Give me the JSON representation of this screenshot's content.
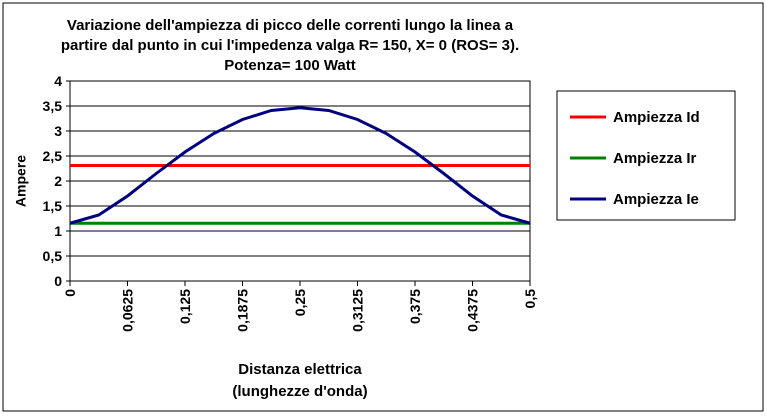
{
  "chart_data": {
    "type": "line",
    "title": [
      "Variazione dell'ampiezza di picco delle correnti lungo la linea a",
      "partire dal punto in cui l'impedenza valga R= 150, X= 0 (ROS= 3).",
      "Potenza= 100 Watt"
    ],
    "x_label": [
      "Distanza elettrica",
      "(lunghezze d'onda)"
    ],
    "y_label": "Ampere",
    "x": [
      0,
      0.03125,
      0.0625,
      0.09375,
      0.125,
      0.15625,
      0.1875,
      0.21875,
      0.25,
      0.28125,
      0.3125,
      0.34375,
      0.375,
      0.40625,
      0.4375,
      0.46875,
      0.5
    ],
    "series": [
      {
        "name": "Ampiezza Id",
        "color": "#ff0000",
        "values": [
          2.31,
          2.31,
          2.31,
          2.31,
          2.31,
          2.31,
          2.31,
          2.31,
          2.31,
          2.31,
          2.31,
          2.31,
          2.31,
          2.31,
          2.31,
          2.31,
          2.31
        ]
      },
      {
        "name": "Ampiezza Ir",
        "color": "#008000",
        "values": [
          1.155,
          1.155,
          1.155,
          1.155,
          1.155,
          1.155,
          1.155,
          1.155,
          1.155,
          1.155,
          1.155,
          1.155,
          1.155,
          1.155,
          1.155,
          1.155,
          1.155
        ]
      },
      {
        "name": "Ampiezza Ie",
        "color": "#000080",
        "values": [
          1.155,
          1.32,
          1.7,
          2.15,
          2.58,
          2.95,
          3.23,
          3.41,
          3.465,
          3.41,
          3.23,
          2.95,
          2.58,
          2.15,
          1.7,
          1.32,
          1.155
        ]
      }
    ],
    "xlim": [
      0,
      0.5
    ],
    "xticks": [
      0,
      {
        "value": 0.0625,
        "label": "0,0625"
      },
      {
        "value": 0.125,
        "label": "0,125"
      },
      {
        "value": 0.1875,
        "label": "0,1875"
      },
      {
        "value": 0.25,
        "label": "0,25"
      },
      {
        "value": 0.3125,
        "label": "0,3125"
      },
      {
        "value": 0.375,
        "label": "0,375"
      },
      {
        "value": 0.4375,
        "label": "0,4375"
      },
      {
        "value": 0.5,
        "label": "0,5"
      }
    ],
    "ylim": [
      0,
      4
    ],
    "yticks": [
      0,
      {
        "value": 0.5,
        "label": "0,5"
      },
      1,
      {
        "value": 1.5,
        "label": "1,5"
      },
      2,
      {
        "value": 2.5,
        "label": "2,5"
      },
      3,
      {
        "value": 3.5,
        "label": "3,5"
      },
      4
    ],
    "grid": true,
    "legend": "right"
  }
}
